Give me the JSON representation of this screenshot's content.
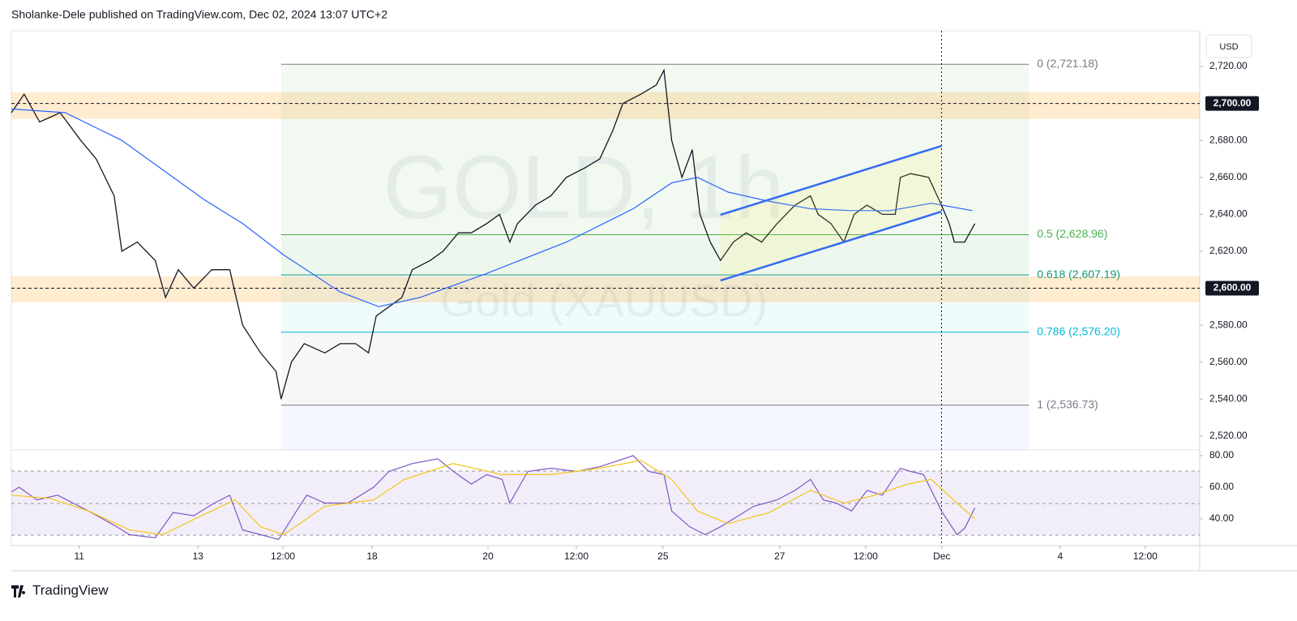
{
  "header": "Sholanke-Dele published on TradingView.com, Dec 02, 2024 13:07 UTC+2",
  "currency": "USD",
  "footer": "TradingView",
  "chart_data": [
    {
      "type": "line",
      "watermark": [
        "GOLD, 1h",
        "Gold (XAUUSD)"
      ],
      "xlim": [
        0,
        462.5
      ],
      "ylim": [
        2512.5,
        2739.3
      ],
      "yticks": [
        {
          "value": 2520,
          "label": "2,520.00"
        },
        {
          "value": 2540,
          "label": "2,540.00"
        },
        {
          "value": 2560,
          "label": "2,560.00"
        },
        {
          "value": 2580,
          "label": "2,580.00"
        },
        {
          "value": 2620,
          "label": "2,620.00"
        },
        {
          "value": 2640,
          "label": "2,640.00"
        },
        {
          "value": 2660,
          "label": "2,660.00"
        },
        {
          "value": 2680,
          "label": "2,680.00"
        },
        {
          "value": 2720,
          "label": "2,720.00"
        }
      ],
      "series": [
        {
          "color": "#131722",
          "x": [
            0,
            5,
            11,
            19,
            27,
            33,
            40,
            43,
            49,
            56,
            60,
            65,
            71,
            78,
            85,
            90,
            97,
            103,
            105,
            109,
            114,
            122,
            128,
            134,
            139,
            142,
            147,
            152,
            156,
            163,
            168,
            174,
            179,
            185,
            190,
            194,
            197,
            204,
            210,
            216,
            223,
            229,
            234,
            238,
            245,
            251,
            254,
            257,
            261,
            265,
            268,
            272,
            276,
            281,
            286,
            292,
            298,
            305,
            311,
            314,
            319,
            324,
            328,
            333,
            339,
            344,
            346,
            350,
            357,
            362,
            365,
            367,
            371,
            375
          ],
          "values": [
            2695,
            2705,
            2690,
            2695,
            2680,
            2670,
            2650,
            2620,
            2625,
            2615,
            2595,
            2610,
            2600,
            2610,
            2610,
            2580,
            2565,
            2555,
            2540,
            2560,
            2570,
            2565,
            2570,
            2570,
            2565,
            2585,
            2590,
            2595,
            2610,
            2615,
            2620,
            2630,
            2630,
            2635,
            2640,
            2625,
            2635,
            2645,
            2650,
            2660,
            2665,
            2670,
            2685,
            2700,
            2705,
            2710,
            2718,
            2680,
            2660,
            2675,
            2640,
            2625,
            2615,
            2625,
            2630,
            2625,
            2635,
            2645,
            2650,
            2640,
            2635,
            2625,
            2640,
            2645,
            2640,
            2640,
            2660,
            2662,
            2660,
            2645,
            2635,
            2625,
            2625,
            2635
          ]
        },
        {
          "color": "#2962ff",
          "x": [
            0,
            21,
            43,
            75,
            90,
            106,
            128,
            143,
            159,
            185,
            216,
            242,
            257,
            267,
            279,
            295,
            311,
            327,
            342,
            358,
            374
          ],
          "values": [
            2697,
            2695,
            2680,
            2648,
            2635,
            2618,
            2598,
            2590,
            2595,
            2608,
            2625,
            2643,
            2657,
            2660,
            2652,
            2647,
            2643,
            2642,
            2642,
            2646,
            2642
          ]
        }
      ],
      "zones": [
        {
          "value": 2700,
          "label": "2,700.00",
          "band": [
            2691.6,
            2706
          ]
        },
        {
          "value": 2600,
          "label": "2,600.00",
          "band": [
            2592.4,
            2606.4
          ]
        }
      ],
      "fib_x": [
        105,
        396
      ],
      "fib_levels": [
        {
          "value": 2721.18,
          "label": "0 (2,721.18)",
          "color": "#787b86"
        },
        {
          "value": 2628.96,
          "label": "0.5 (2,628.96)",
          "color": "#4caf50"
        },
        {
          "value": 2607.19,
          "label": "0.618 (2,607.19)",
          "color": "#089981"
        },
        {
          "value": 2576.2,
          "label": "0.786 (2,576.20)",
          "color": "#00bcd4"
        },
        {
          "value": 2536.73,
          "label": "1 (2,536.73)",
          "color": "#787b86"
        }
      ],
      "channel": {
        "x": [
          276,
          362
        ],
        "upper": [
          2639.7,
          2677
        ],
        "lower": [
          2604.2,
          2641.5
        ],
        "color": "#2962ff"
      },
      "marker_x": 362
    },
    {
      "type": "line",
      "xlim": [
        0,
        462.5
      ],
      "ylim": [
        23.1,
        83.6
      ],
      "yticks": [
        {
          "value": 40,
          "label": "40.00"
        },
        {
          "value": 60,
          "label": "60.00"
        },
        {
          "value": 80,
          "label": "80.00"
        }
      ],
      "bands": [
        70.3,
        49.7,
        29.7
      ],
      "xticks": [
        {
          "value": 26.4,
          "label": "11"
        },
        {
          "value": 72.6,
          "label": "13"
        },
        {
          "value": 105.7,
          "label": "12:00"
        },
        {
          "value": 140.4,
          "label": "18"
        },
        {
          "value": 185.5,
          "label": "20"
        },
        {
          "value": 219.9,
          "label": "12:00"
        },
        {
          "value": 253.6,
          "label": "25"
        },
        {
          "value": 299,
          "label": "27"
        },
        {
          "value": 332.5,
          "label": "12:00"
        },
        {
          "value": 362.1,
          "label": "Dec"
        },
        {
          "value": 408.2,
          "label": "4"
        },
        {
          "value": 441.3,
          "label": "12:00"
        }
      ],
      "series": [
        {
          "color": "#7e57c2",
          "x": [
            0,
            3,
            10,
            18,
            24,
            30,
            40,
            46,
            56,
            63,
            71,
            79,
            85,
            90,
            97,
            104,
            111,
            115,
            122,
            131,
            141,
            147,
            156,
            166,
            172,
            179,
            185,
            191,
            194,
            201,
            210,
            220,
            229,
            242,
            248,
            254,
            257,
            264,
            270,
            276,
            283,
            289,
            298,
            305,
            311,
            316,
            321,
            327,
            333,
            339,
            346,
            350,
            355,
            362,
            368,
            371,
            375
          ],
          "values": [
            57,
            60,
            52,
            55,
            50,
            45,
            36,
            30,
            28,
            44,
            42,
            50,
            55,
            33,
            30,
            27,
            45,
            55,
            50,
            50,
            60,
            70,
            75,
            78,
            70,
            62,
            68,
            65,
            50,
            70,
            72,
            70,
            73,
            80,
            70,
            68,
            45,
            35,
            30,
            35,
            42,
            48,
            52,
            58,
            65,
            52,
            50,
            45,
            58,
            55,
            72,
            70,
            68,
            45,
            30,
            34,
            47
          ]
        },
        {
          "color": "#f5c518",
          "x": [
            0,
            15,
            30,
            46,
            59,
            74,
            87,
            97,
            106,
            122,
            141,
            153,
            172,
            191,
            210,
            229,
            245,
            257,
            267,
            279,
            295,
            311,
            324,
            336,
            349,
            358,
            368,
            375
          ],
          "values": [
            55,
            53,
            45,
            33,
            30,
            42,
            52,
            35,
            30,
            48,
            52,
            65,
            75,
            68,
            68,
            72,
            77,
            65,
            45,
            37,
            44,
            58,
            50,
            55,
            62,
            65,
            50,
            40
          ]
        }
      ]
    }
  ]
}
